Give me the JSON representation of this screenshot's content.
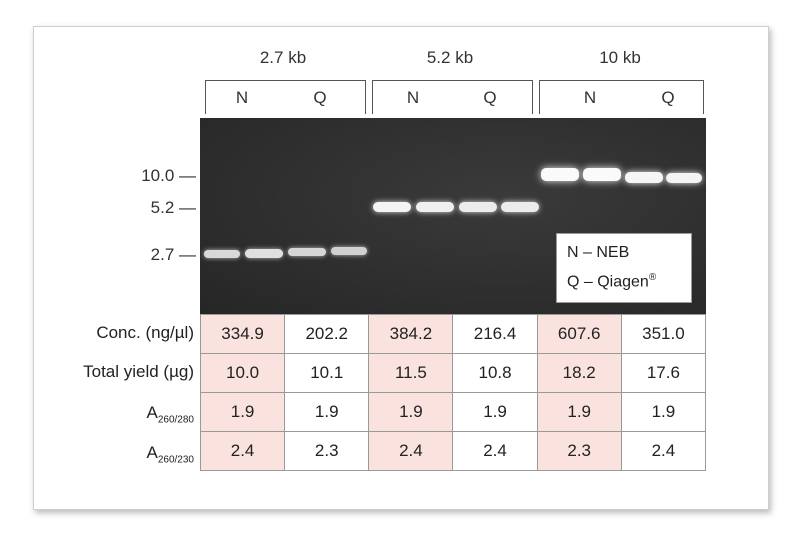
{
  "groups": [
    {
      "label": "2.7 kb",
      "lanes": [
        "N",
        "Q"
      ]
    },
    {
      "label": "5.2 kb",
      "lanes": [
        "N",
        "Q"
      ]
    },
    {
      "label": "10 kb",
      "lanes": [
        "N",
        "Q"
      ]
    }
  ],
  "markers": [
    "10.0 —",
    "5.2 —",
    "2.7 —"
  ],
  "legend": {
    "line1": "N – NEB",
    "line2_text": "Q – Qiagen",
    "line2_sup": "®"
  },
  "rows": [
    {
      "label": "Conc. (ng/µl)",
      "values": [
        "334.9",
        "202.2",
        "384.2",
        "216.4",
        "607.6",
        "351.0"
      ]
    },
    {
      "label": "Total yield (µg)",
      "values": [
        "10.0",
        "10.1",
        "11.5",
        "10.8",
        "18.2",
        "17.6"
      ]
    },
    {
      "label_main": "A",
      "label_sub": "260/280",
      "values": [
        "1.9",
        "1.9",
        "1.9",
        "1.9",
        "1.9",
        "1.9"
      ]
    },
    {
      "label_main": "A",
      "label_sub": "260/230",
      "values": [
        "2.4",
        "2.3",
        "2.4",
        "2.4",
        "2.3",
        "2.4"
      ]
    }
  ],
  "colors": {
    "neb_cell": "#fae3df",
    "gel": "#2f2f2f",
    "band": "#f2f2f2"
  }
}
